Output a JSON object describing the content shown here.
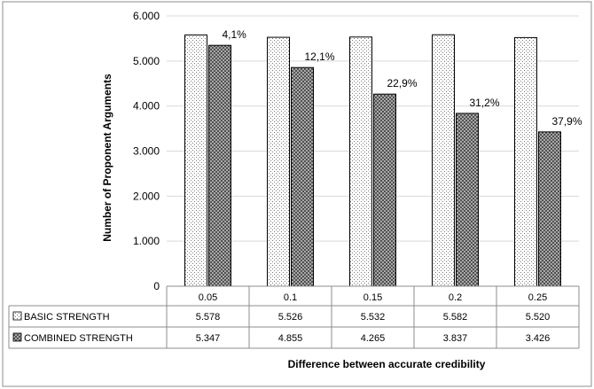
{
  "chart_data": {
    "type": "bar",
    "categories": [
      "0.05",
      "0.1",
      "0.15",
      "0.2",
      "0.25"
    ],
    "series": [
      {
        "name": "BASIC STRENGTH",
        "values": [
          5578,
          5526,
          5532,
          5582,
          5520
        ],
        "display": [
          "5.578",
          "5.526",
          "5.532",
          "5.582",
          "5.520"
        ],
        "pattern": "dots"
      },
      {
        "name": "COMBINED STRENGTH",
        "values": [
          5347,
          4855,
          4265,
          3837,
          3426
        ],
        "display": [
          "5.347",
          "4.855",
          "4.265",
          "3.837",
          "3.426"
        ],
        "pattern": "crosshatch"
      }
    ],
    "data_labels": [
      "4,1%",
      "12,1%",
      "22,9%",
      "31,2%",
      "37,9%"
    ],
    "y_ticks": [
      "0",
      "1.000",
      "2.000",
      "3.000",
      "4.000",
      "5.000",
      "6.000"
    ],
    "ylim": [
      0,
      6000
    ],
    "ylabel": "Number of Proponent Arguments",
    "xlabel": "Difference between accurate credibility",
    "grid": true,
    "legend": "data-table"
  }
}
